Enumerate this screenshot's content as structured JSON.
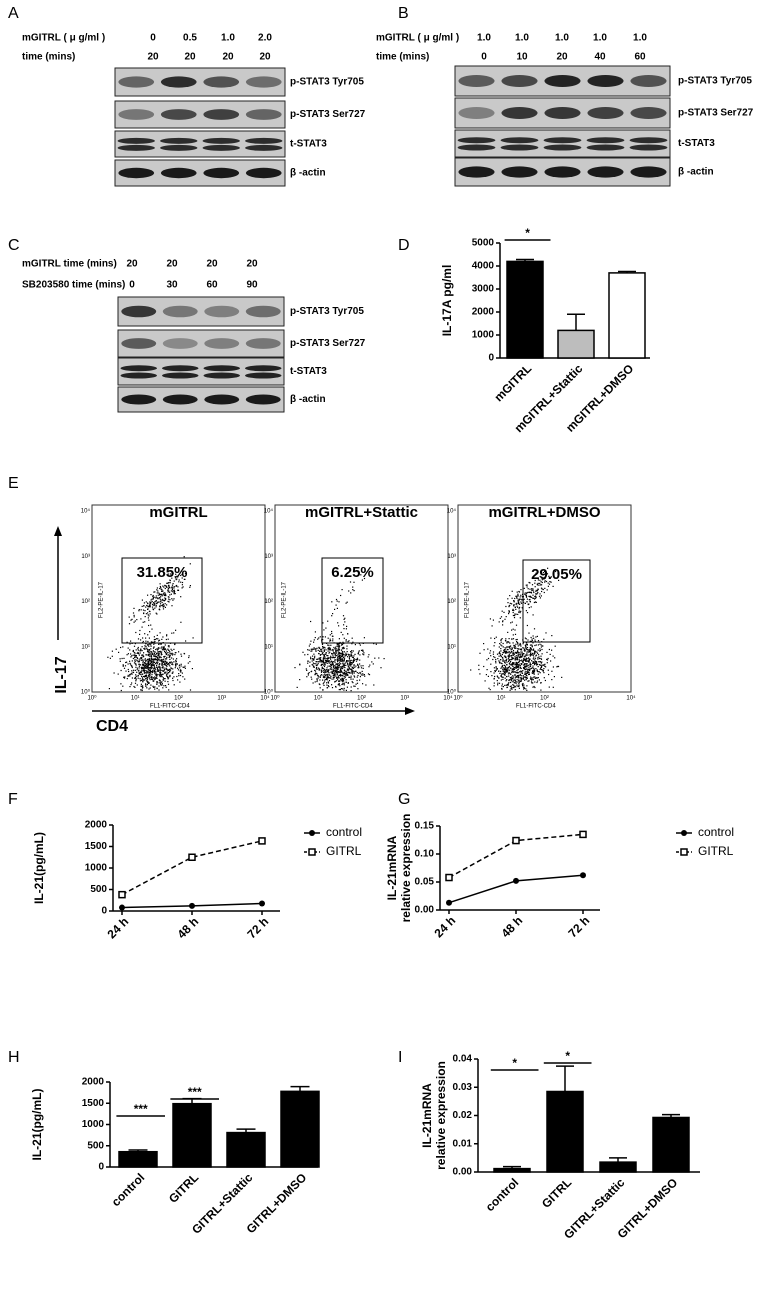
{
  "panel_labels": [
    "A",
    "B",
    "C",
    "D",
    "E",
    "F",
    "G",
    "H",
    "I"
  ],
  "blots": [
    {
      "header_rows": [
        {
          "label": "mGITRL ( μ g/ml )",
          "values": [
            "0",
            "0.5",
            "1.0",
            "2.0"
          ]
        },
        {
          "label": "time (mins)",
          "values": [
            "20",
            "20",
            "20",
            "20"
          ]
        }
      ],
      "rows": [
        "p-STAT3 Tyr705",
        "p-STAT3 Ser727",
        "t-STAT3",
        "β -actin"
      ]
    },
    {
      "header_rows": [
        {
          "label": "mGITRL ( μ g/ml )",
          "values": [
            "1.0",
            "1.0",
            "1.0",
            "1.0",
            "1.0"
          ]
        },
        {
          "label": "time (mins)",
          "values": [
            "0",
            "10",
            "20",
            "40",
            "60"
          ]
        }
      ],
      "rows": [
        "p-STAT3 Tyr705",
        "p-STAT3 Ser727",
        "t-STAT3",
        "β -actin"
      ]
    },
    {
      "header_rows": [
        {
          "label": "mGITRL time (mins)",
          "values": [
            "20",
            "20",
            "20",
            "20"
          ]
        },
        {
          "label": "SB203580 time (mins)",
          "values": [
            "0",
            "30",
            "60",
            "90"
          ]
        }
      ],
      "rows": [
        "p-STAT3 Tyr705",
        "p-STAT3 Ser727",
        "t-STAT3",
        "β -actin"
      ]
    }
  ],
  "flow": {
    "plots": [
      {
        "title": "mGITRL",
        "percent": "31.85%"
      },
      {
        "title": "mGITRL+Stattic",
        "percent": "6.25%"
      },
      {
        "title": "mGITRL+DMSO",
        "percent": "29.05%"
      }
    ],
    "y_channel": "FL2-PE-IL-17",
    "x_channel": "FL1-FITC-CD4",
    "ticks": [
      "10⁰",
      "10¹",
      "10²",
      "10³",
      "10⁴"
    ],
    "y_marker": "IL-17",
    "x_marker": "CD4"
  },
  "chart_data": [
    {
      "type": "bar",
      "y_label": "IL-17A pg/ml",
      "categories": [
        "mGITRL",
        "mGITRL+Stattic",
        "mGITRL+DMSO"
      ],
      "values": [
        4200,
        1200,
        3700
      ],
      "errors": [
        80,
        700,
        60
      ],
      "colors": [
        "#000000",
        "#bdbdbd",
        "#ffffff"
      ],
      "ylim": [
        0,
        5000
      ],
      "yticks": [
        0,
        1000,
        2000,
        3000,
        4000,
        5000
      ],
      "annotations": [
        "*"
      ]
    },
    {
      "type": "line",
      "y_label": "IL-21(pg/mL)",
      "categories": [
        "24 h",
        "48 h",
        "72 h"
      ],
      "series": [
        {
          "name": "control",
          "color": "#000000",
          "marker": "circle",
          "line_style": "solid",
          "values": [
            80,
            120,
            175
          ]
        },
        {
          "name": "GITRL",
          "color": "#000000",
          "marker": "square",
          "line_style": "dashed",
          "values": [
            380,
            1250,
            1630
          ]
        }
      ],
      "ylim": [
        0,
        2000
      ],
      "yticks": [
        0,
        500,
        1000,
        1500,
        2000
      ]
    },
    {
      "type": "line",
      "y_label": [
        "IL-21mRNA",
        "relative expression"
      ],
      "categories": [
        "24 h",
        "48 h",
        "72 h"
      ],
      "series": [
        {
          "name": "control",
          "color": "#000000",
          "marker": "circle",
          "line_style": "solid",
          "values": [
            0.013,
            0.052,
            0.062
          ]
        },
        {
          "name": "GITRL",
          "color": "#000000",
          "marker": "square",
          "line_style": "dashed",
          "values": [
            0.058,
            0.124,
            0.135
          ]
        }
      ],
      "ylim": [
        0,
        0.15
      ],
      "yticks": [
        {
          "value": 0,
          "label": "0.00"
        },
        {
          "value": 0.05,
          "label": "0.05"
        },
        {
          "value": 0.1,
          "label": "0.10"
        },
        {
          "value": 0.15,
          "label": "0.15"
        }
      ]
    },
    {
      "type": "bar",
      "y_label": "IL-21(pg/mL)",
      "categories": [
        "control",
        "GITRL",
        "GITRL+Stattic",
        "GITRL+DMSO"
      ],
      "values": [
        360,
        1490,
        810,
        1780
      ],
      "errors": [
        40,
        120,
        80,
        110
      ],
      "color": "#000000",
      "ylim": [
        0,
        2000
      ],
      "yticks": [
        0,
        500,
        1000,
        1500,
        2000
      ],
      "annotations": [
        "***",
        "***"
      ]
    },
    {
      "type": "bar",
      "y_label": [
        "IL-21mRNA",
        "relative expression"
      ],
      "categories": [
        "control",
        "GITRL",
        "GITRL+Stattic",
        "GITRL+DMSO"
      ],
      "values": [
        0.0012,
        0.0285,
        0.0035,
        0.0193
      ],
      "errors": [
        0.0007,
        0.009,
        0.0015,
        0.001
      ],
      "color": "#000000",
      "ylim": [
        0,
        0.04
      ],
      "yticks": [
        {
          "value": 0,
          "label": "0.00"
        },
        {
          "value": 0.01,
          "label": "0.01"
        },
        {
          "value": 0.02,
          "label": "0.02"
        },
        {
          "value": 0.03,
          "label": "0.03"
        },
        {
          "value": 0.04,
          "label": "0.04"
        }
      ],
      "annotations": [
        "*",
        "*"
      ]
    }
  ]
}
